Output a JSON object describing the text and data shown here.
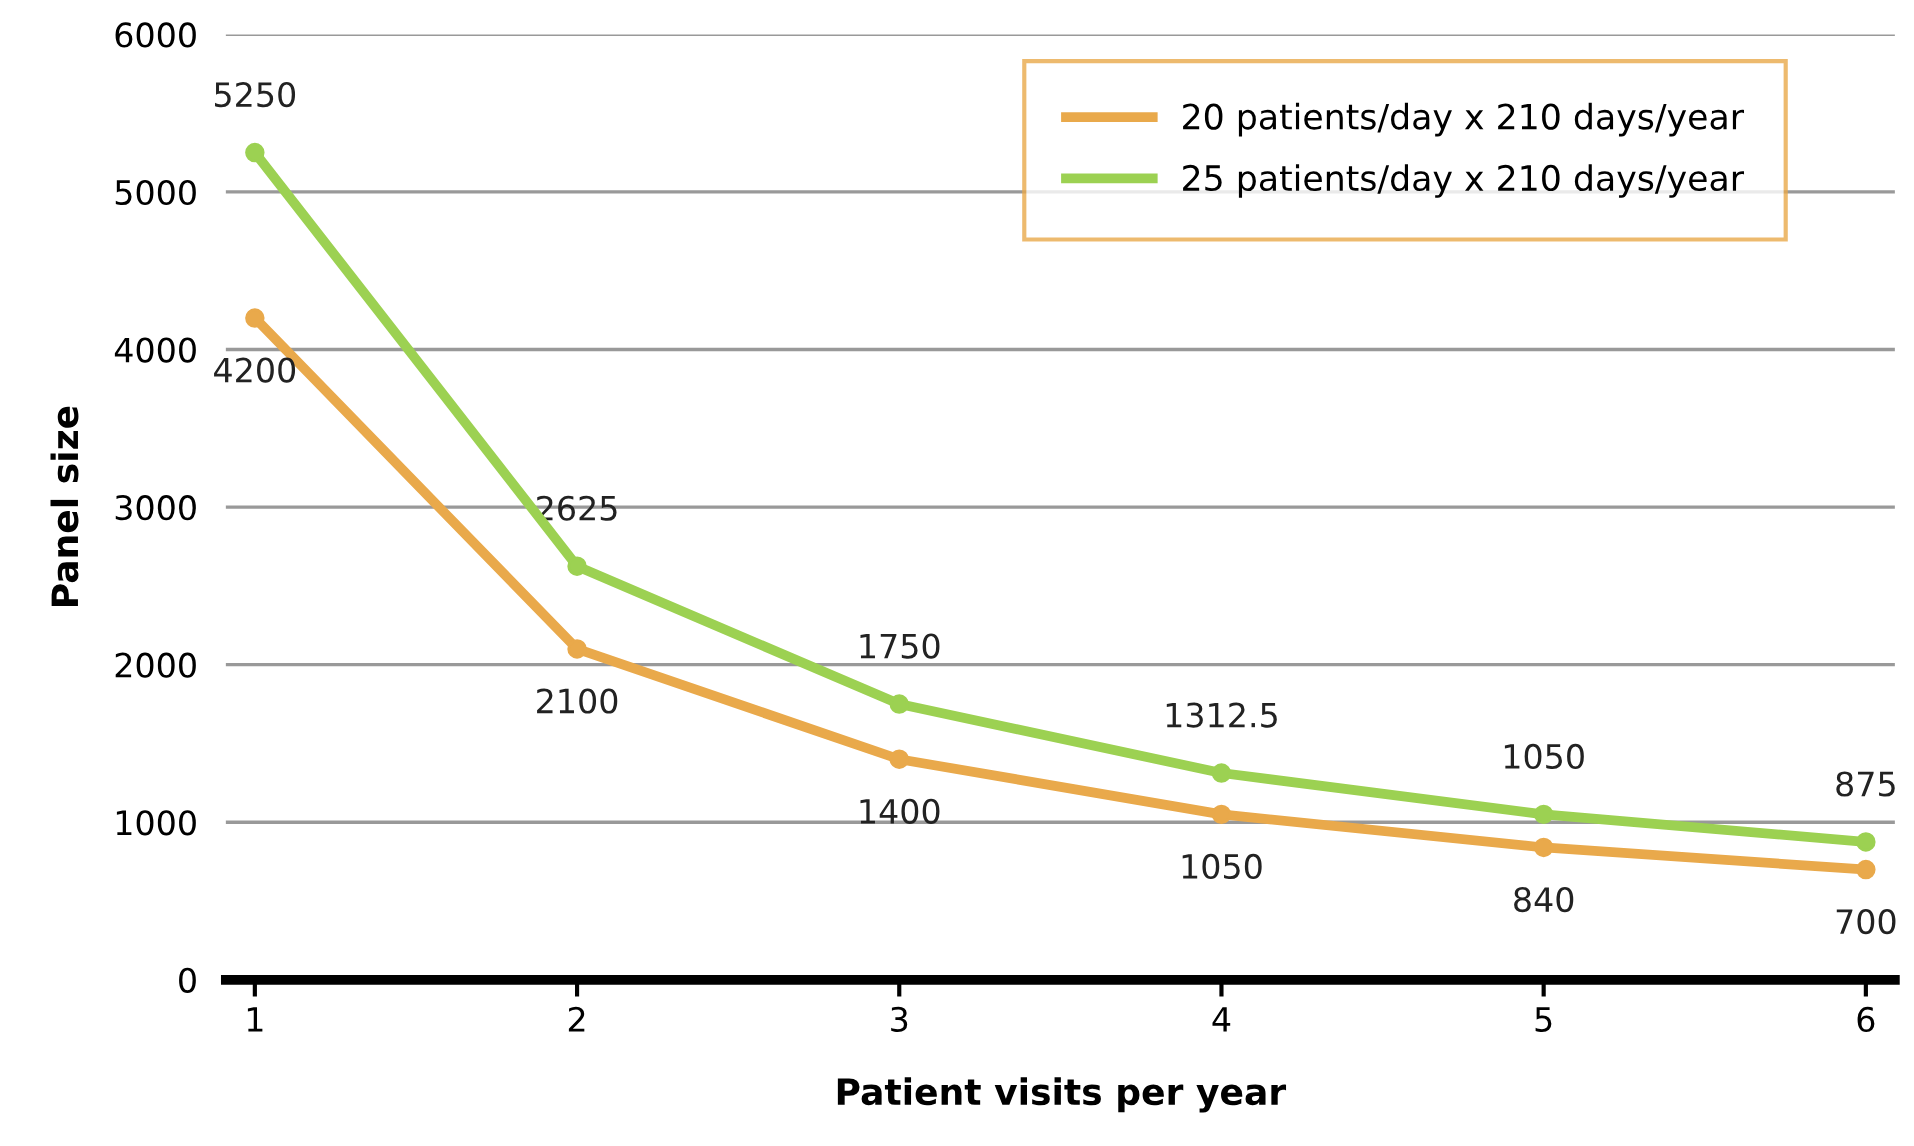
{
  "chart_data": {
    "type": "line",
    "xlabel": "Patient visits per year",
    "ylabel": "Panel size",
    "x": [
      1,
      2,
      3,
      4,
      5,
      6
    ],
    "series": [
      {
        "name": "20 patients/day x 210 days/year",
        "color": "#e9a94b",
        "values": [
          4200,
          2100,
          1400,
          1050,
          840,
          700
        ]
      },
      {
        "name": "25 patients/day x 210 days/year",
        "color": "#9cd152",
        "values": [
          5250,
          2625,
          1750,
          1312.5,
          1050,
          875
        ]
      }
    ],
    "xlim": [
      0.91,
      6.09
    ],
    "xticks": [
      1,
      2,
      3,
      4,
      5,
      6
    ],
    "ylim": [
      0,
      6000
    ],
    "yticks": [
      0,
      1000,
      2000,
      3000,
      4000,
      5000,
      6000
    ],
    "grid": "y",
    "legend": "top right",
    "marker": "circle",
    "line_style": "solid",
    "data_labels": true
  }
}
